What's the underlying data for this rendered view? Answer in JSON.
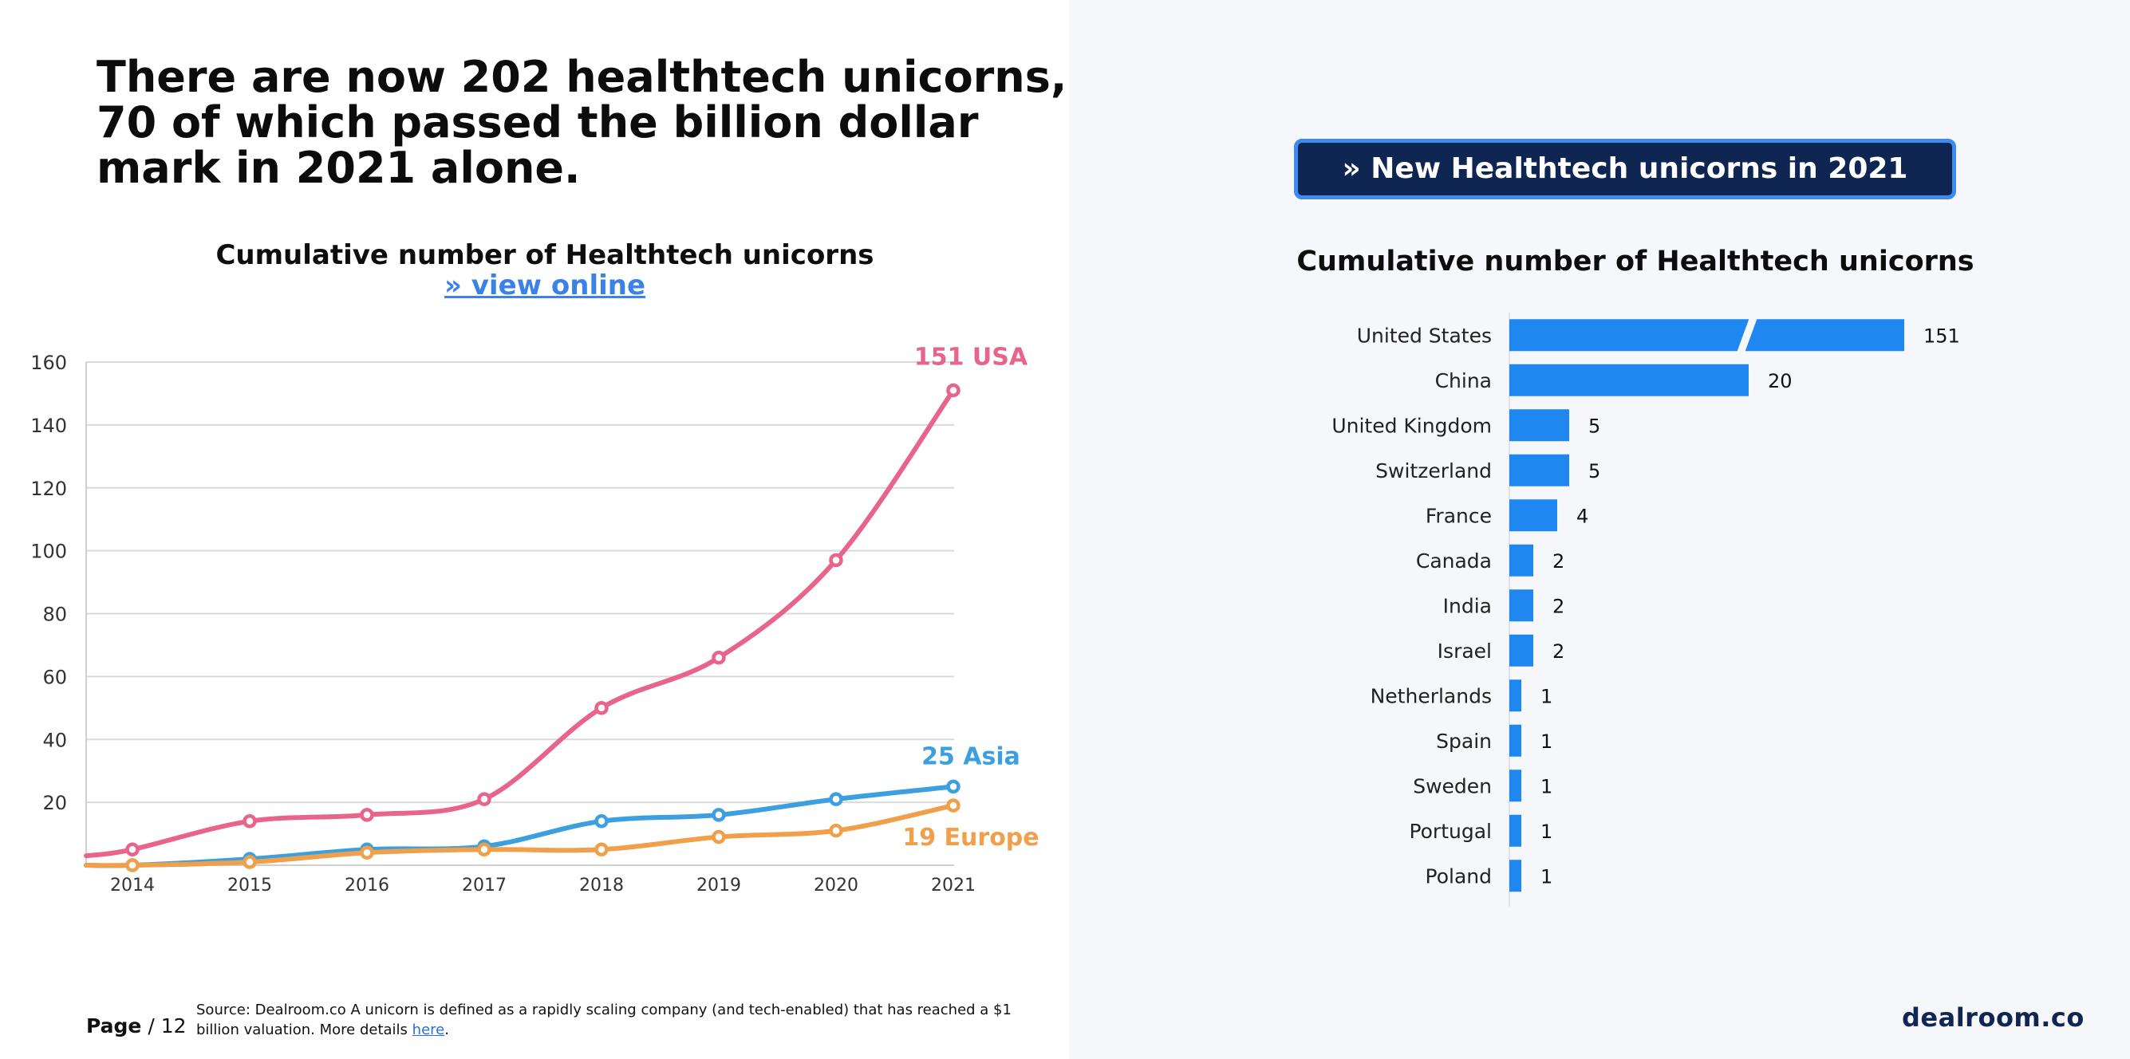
{
  "headline": {
    "line1": "There are now 202 healthtech unicorns,",
    "line2": "70 of which passed the billion dollar",
    "line3": "mark in 2021 alone."
  },
  "left_chart": {
    "title": "Cumulative number of Healthtech unicorns",
    "link_label": "» view online"
  },
  "right_panel": {
    "badge_label": "» New Healthtech unicorns in 2021",
    "title": "Cumulative number of Healthtech unicorns"
  },
  "footer": {
    "page_label": "Page",
    "page_total": "/ 12",
    "source_prefix": "Source:",
    "source_text": "Dealroom.co   A unicorn is defined as a rapidly scaling company (and tech-enabled) that has reached a $1 billion valuation. More details",
    "source_link": "here",
    "source_end": ".",
    "logo": "dealroom.co"
  },
  "colors": {
    "usa": "#e8648a",
    "asia": "#3c9fdf",
    "europe": "#f0a04b",
    "bar": "#1e88f0",
    "grid": "#d9d9d9"
  },
  "chart_data": [
    {
      "type": "line",
      "title": "Cumulative number of Healthtech unicorns",
      "x": [
        "2014",
        "2015",
        "2016",
        "2017",
        "2018",
        "2019",
        "2020",
        "2021"
      ],
      "ylim": [
        0,
        160
      ],
      "yticks": [
        20,
        40,
        60,
        80,
        100,
        120,
        140,
        160
      ],
      "grid": true,
      "series": [
        {
          "name": "USA",
          "label": "151 USA",
          "color": "#e8648a",
          "start": 3,
          "values": [
            5,
            14,
            16,
            21,
            50,
            66,
            97,
            151
          ]
        },
        {
          "name": "Asia",
          "label": "25 Asia",
          "color": "#3c9fdf",
          "start": 0,
          "values": [
            0,
            2,
            5,
            6,
            14,
            16,
            21,
            25
          ]
        },
        {
          "name": "Europe",
          "label": "19 Europe",
          "color": "#f0a04b",
          "start": 0,
          "values": [
            0,
            1,
            4,
            5,
            5,
            9,
            11,
            19
          ]
        }
      ]
    },
    {
      "type": "bar",
      "orientation": "horizontal",
      "title": "Cumulative number of Healthtech unicorns",
      "categories": [
        "United States",
        "China",
        "United Kingdom",
        "Switzerland",
        "France",
        "Canada",
        "India",
        "Israel",
        "Netherlands",
        "Spain",
        "Sweden",
        "Portugal",
        "Poland"
      ],
      "values": [
        151,
        20,
        5,
        5,
        4,
        2,
        2,
        2,
        1,
        1,
        1,
        1,
        1
      ],
      "axis_break": "United States"
    }
  ]
}
